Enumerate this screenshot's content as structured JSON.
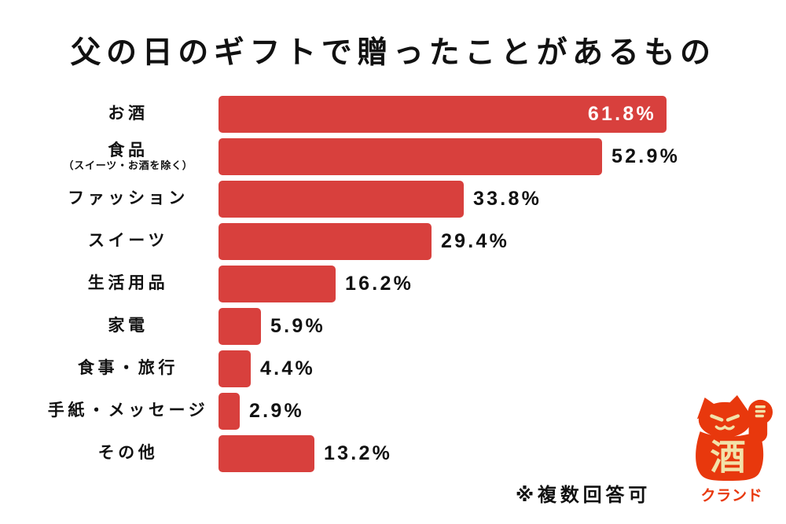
{
  "title": "父の日のギフトで贈ったことがあるもの",
  "note": "※複数回答可",
  "colors": {
    "bar": "#d8403d",
    "value_inside_text": "#ffffff",
    "text": "#111111",
    "logo_red": "#e8380d",
    "logo_cream": "#f2e2a9",
    "background": "#ffffff"
  },
  "logo": {
    "icon": "maneki-neko-cat-icon",
    "kanji_on_belly": "酒",
    "brand_name": "クランド"
  },
  "chart_data": {
    "type": "bar",
    "orientation": "horizontal",
    "title": "父の日のギフトで贈ったことがあるもの",
    "categories": [
      "お酒",
      "食品（スイーツ・お酒を除く）",
      "ファッション",
      "スイーツ",
      "生活用品",
      "家電",
      "食事・旅行",
      "手紙・メッセージ",
      "その他"
    ],
    "values": [
      61.8,
      52.9,
      33.8,
      29.4,
      16.2,
      5.9,
      4.4,
      2.9,
      13.2
    ],
    "value_labels": [
      "61.8%",
      "52.9%",
      "33.8%",
      "29.4%",
      "16.2%",
      "5.9%",
      "4.4%",
      "2.9%",
      "13.2%"
    ],
    "xlabel": "",
    "ylabel": "",
    "xlim": [
      0,
      65
    ],
    "grid": false,
    "legend": "none",
    "annotation": "※複数回答可",
    "value_label_position": "first bar inside (white), others outside right (black)"
  },
  "rows": [
    {
      "main": "お酒",
      "sub": "",
      "value_label": "61.8%",
      "inside": true
    },
    {
      "main": "食品",
      "sub": "（スイーツ・お酒を除く）",
      "value_label": "52.9%",
      "inside": false
    },
    {
      "main": "ファッション",
      "sub": "",
      "value_label": "33.8%",
      "inside": false
    },
    {
      "main": "スイーツ",
      "sub": "",
      "value_label": "29.4%",
      "inside": false
    },
    {
      "main": "生活用品",
      "sub": "",
      "value_label": "16.2%",
      "inside": false
    },
    {
      "main": "家電",
      "sub": "",
      "value_label": "5.9%",
      "inside": false
    },
    {
      "main": "食事・旅行",
      "sub": "",
      "value_label": "4.4%",
      "inside": false
    },
    {
      "main": "手紙・メッセージ",
      "sub": "",
      "value_label": "2.9%",
      "inside": false
    },
    {
      "main": "その他",
      "sub": "",
      "value_label": "13.2%",
      "inside": false
    }
  ]
}
